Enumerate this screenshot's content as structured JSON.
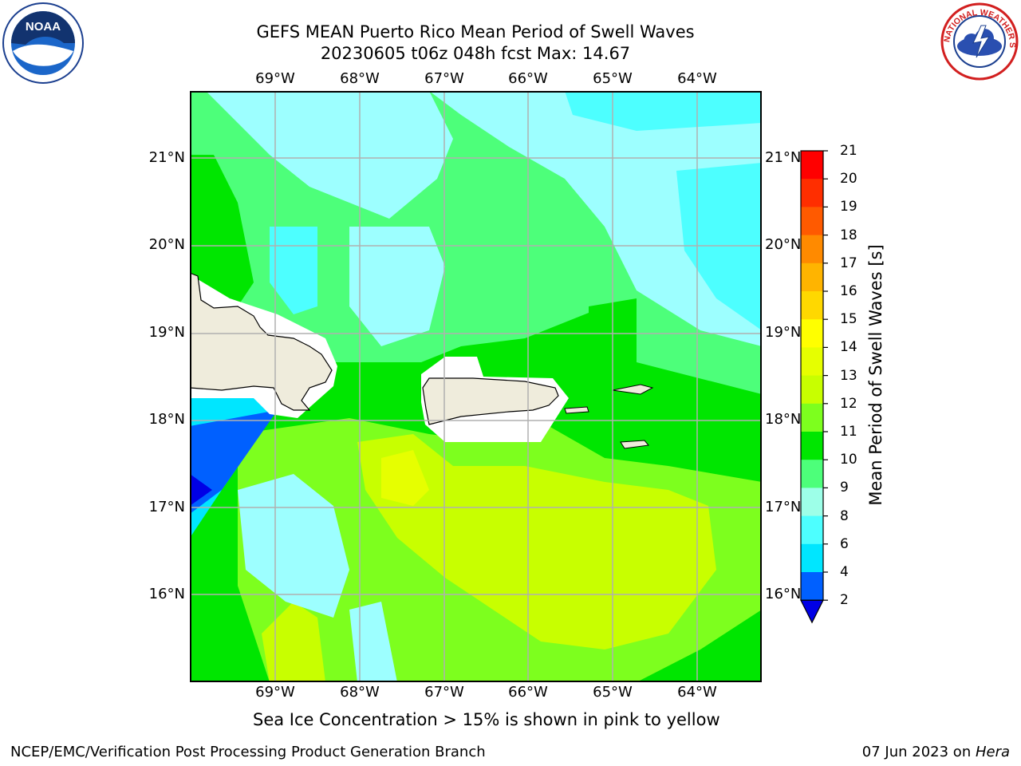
{
  "title_line1": "GEFS MEAN Puerto Rico Mean Period of Swell Waves",
  "title_line2": "20230605 t06z 048h fcst   Max: 14.67",
  "map": {
    "lon_labels": [
      "69°W",
      "68°W",
      "67°W",
      "66°W",
      "65°W",
      "64°W"
    ],
    "lat_labels": [
      "21°N",
      "20°N",
      "19°N",
      "18°N",
      "17°N",
      "16°N"
    ],
    "lon_range": [
      -70.0,
      -63.25
    ],
    "lat_range": [
      15.0,
      21.75
    ],
    "land_color": "#efecdc",
    "grid_color": "#b0b0b0"
  },
  "colorbar": {
    "label": "Mean Period of Swell Waves [s]",
    "ticks": [
      "21",
      "20",
      "19",
      "18",
      "17",
      "16",
      "15",
      "14",
      "13",
      "12",
      "11",
      "10",
      "9",
      "8",
      "6",
      "4",
      "2"
    ],
    "colors_top_to_bottom": [
      "#ff0000",
      "#ff2e00",
      "#ff5a00",
      "#ff8a00",
      "#ffb400",
      "#ffd800",
      "#ffff00",
      "#e6ff00",
      "#c8ff00",
      "#7dff1e",
      "#00e600",
      "#4dff7a",
      "#9dffe8",
      "#4dffff",
      "#00e6ff",
      "#0060ff",
      "#0000e6"
    ]
  },
  "subtitle": "Sea Ice Concentration > 15% is shown in pink to yellow",
  "footer_left": "NCEP/EMC/Verification Post Processing Product Generation Branch",
  "footer_date": "07 Jun 2023 on ",
  "footer_machine": "Hera",
  "logos": {
    "noaa_text": "NOAA",
    "nws_text": "NATIONAL WEATHER SERVICE"
  }
}
